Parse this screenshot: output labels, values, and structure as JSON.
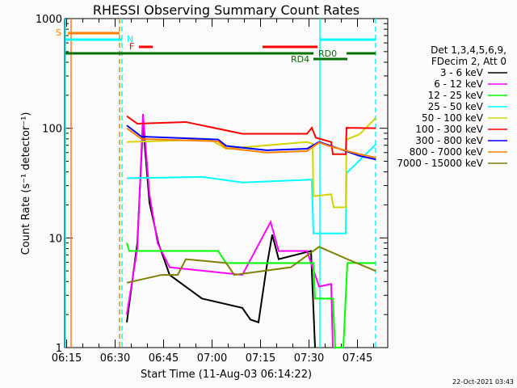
{
  "chart_data": {
    "type": "line",
    "title": "RHESSI Observing Summary Count Rates",
    "xlabel": "Start Time (11-Aug-03 06:14:22)",
    "ylabel": "Count Rate (s⁻¹ detector⁻¹)",
    "x_units": "minutes since 06:14:22",
    "xlim": [
      0,
      100
    ],
    "ylim": [
      1,
      1000
    ],
    "yscale": "log",
    "x_tick_labels": [
      {
        "t": 0.63,
        "label": "06:15"
      },
      {
        "t": 15.63,
        "label": "06:30"
      },
      {
        "t": 30.63,
        "label": "06:45"
      },
      {
        "t": 45.63,
        "label": "07:00"
      },
      {
        "t": 60.63,
        "label": "07:15"
      },
      {
        "t": 75.63,
        "label": "07:30"
      },
      {
        "t": 90.63,
        "label": "07:45"
      }
    ],
    "y_tick_labels": [
      {
        "v": 1,
        "label": "1"
      },
      {
        "v": 10,
        "label": "10"
      },
      {
        "v": 100,
        "label": "100"
      },
      {
        "v": 1000,
        "label": "1000"
      }
    ],
    "legend": {
      "header": [
        "Det 1,3,4,5,6,9,",
        "FDecim 2, Att 0"
      ],
      "placement": "right"
    },
    "series": [
      {
        "name": "3 - 6 keV",
        "color": "#000000",
        "points": [
          [
            19.25,
            1.7
          ],
          [
            22.5,
            9
          ],
          [
            24.25,
            110
          ],
          [
            26.25,
            21
          ],
          [
            29,
            9
          ],
          [
            32.5,
            4.6
          ],
          [
            42.5,
            2.8
          ],
          [
            55,
            2.3
          ],
          [
            57.5,
            1.8
          ],
          [
            60,
            1.7
          ],
          [
            62.5,
            5.4
          ],
          [
            64.25,
            10.7
          ],
          [
            66.25,
            6.4
          ],
          [
            76.25,
            7.6
          ],
          [
            77.5,
            1
          ]
        ]
      },
      {
        "name": "6 - 12 keV",
        "color": "#ff00ff",
        "points": [
          [
            19.25,
            2
          ],
          [
            22.5,
            8
          ],
          [
            24.25,
            135
          ],
          [
            26.25,
            25
          ],
          [
            28.75,
            9
          ],
          [
            32.5,
            5.4
          ],
          [
            55,
            4.6
          ],
          [
            63.75,
            14
          ],
          [
            66.25,
            7.6
          ],
          [
            75,
            7.6
          ],
          [
            78.75,
            3.6
          ],
          [
            82.5,
            3.8
          ],
          [
            83,
            1
          ]
        ]
      },
      {
        "name": "12 - 25 keV",
        "color": "#00ff00",
        "points": [
          [
            19.25,
            9
          ],
          [
            20,
            7.6
          ],
          [
            47.5,
            7.6
          ],
          [
            50,
            5.9
          ],
          [
            77,
            5.9
          ],
          [
            77.5,
            2.8
          ],
          [
            83,
            2.8
          ],
          [
            83.75,
            1
          ],
          [
            86.25,
            1
          ],
          [
            87.5,
            5.9
          ],
          [
            96.25,
            5.9
          ]
        ]
      },
      {
        "name": "25 - 50 keV",
        "color": "#00ffff",
        "points": [
          [
            19.25,
            35
          ],
          [
            42.5,
            36
          ],
          [
            55,
            32
          ],
          [
            76.5,
            34
          ],
          [
            77,
            11
          ],
          [
            87,
            11
          ],
          [
            87.25,
            39
          ],
          [
            96.25,
            71
          ]
        ]
      },
      {
        "name": "50 - 100 keV",
        "color": "#d4d400",
        "points": [
          [
            19.25,
            75
          ],
          [
            45,
            79
          ],
          [
            50,
            65
          ],
          [
            75,
            75
          ],
          [
            76.75,
            72
          ],
          [
            77,
            24
          ],
          [
            82.5,
            25
          ],
          [
            83.25,
            19
          ],
          [
            87,
            19
          ],
          [
            87.25,
            79
          ],
          [
            91.25,
            88
          ],
          [
            96.25,
            124
          ]
        ]
      },
      {
        "name": "100 - 300 keV",
        "color": "#ff0000",
        "points": [
          [
            19.25,
            129
          ],
          [
            22.5,
            110
          ],
          [
            37.5,
            114
          ],
          [
            55,
            89
          ],
          [
            75,
            89
          ],
          [
            76.5,
            101
          ],
          [
            77.75,
            82
          ],
          [
            82.5,
            75
          ],
          [
            83,
            58
          ],
          [
            87,
            58
          ],
          [
            87.25,
            101
          ],
          [
            96.25,
            100
          ]
        ]
      },
      {
        "name": "300 - 800 keV",
        "color": "#0000ff",
        "points": [
          [
            19.25,
            106
          ],
          [
            23.75,
            84
          ],
          [
            47.5,
            79
          ],
          [
            50,
            69
          ],
          [
            62.5,
            63
          ],
          [
            75,
            65
          ],
          [
            78.75,
            75
          ],
          [
            82.5,
            69
          ],
          [
            91.25,
            56
          ],
          [
            96.25,
            52
          ]
        ]
      },
      {
        "name": "800 - 7000 keV",
        "color": "#ff8000",
        "points": [
          [
            19.25,
            100
          ],
          [
            23.75,
            80
          ],
          [
            47.5,
            76
          ],
          [
            50,
            66
          ],
          [
            62.5,
            60
          ],
          [
            75,
            62
          ],
          [
            78.75,
            74
          ],
          [
            82.5,
            68
          ],
          [
            91.25,
            58
          ],
          [
            96.25,
            54
          ]
        ]
      },
      {
        "name": "7000 - 15000 keV",
        "color": "#808000",
        "points": [
          [
            19.25,
            3.9
          ],
          [
            30,
            4.6
          ],
          [
            35,
            4.6
          ],
          [
            37.5,
            6.4
          ],
          [
            50,
            5.9
          ],
          [
            52.5,
            4.6
          ],
          [
            70,
            5.4
          ],
          [
            78.75,
            8.3
          ],
          [
            87.5,
            6.4
          ],
          [
            96.25,
            5
          ]
        ]
      }
    ],
    "vertical_markers": [
      {
        "t": 2,
        "color": "#ff8000",
        "style": "solid"
      },
      {
        "t": 17,
        "color": "#ff8000",
        "style": "dashed"
      },
      {
        "t": 0.25,
        "color": "#00ffff",
        "style": "solid"
      },
      {
        "t": 17.75,
        "color": "#00ffff",
        "style": "dashed"
      },
      {
        "t": 79,
        "color": "#00ffff",
        "style": "solid"
      },
      {
        "t": 96.25,
        "color": "#00ffff",
        "style": "dashed"
      }
    ],
    "flags": [
      {
        "label": "S",
        "color": "#ff8000",
        "level": 0,
        "intervals": [
          [
            1,
            17
          ]
        ]
      },
      {
        "label": "N",
        "color": "#00ffff",
        "level": 1,
        "intervals": [
          [
            0.25,
            17.75
          ],
          [
            79,
            96.25
          ]
        ]
      },
      {
        "label": "F",
        "color": "#ff0000",
        "level": 2,
        "intervals": [
          [
            23,
            27.25
          ],
          [
            61.25,
            78.25
          ]
        ]
      },
      {
        "label": "RD0",
        "color": "#007000",
        "level": 3,
        "intervals": [
          [
            0.25,
            77
          ],
          [
            87.25,
            96.25
          ]
        ]
      },
      {
        "label": "RD4",
        "color": "#007000",
        "level": 4,
        "intervals": [
          [
            77,
            87.5
          ]
        ]
      }
    ]
  },
  "footer": {
    "timestamp": "22-Oct-2021 03:43"
  }
}
